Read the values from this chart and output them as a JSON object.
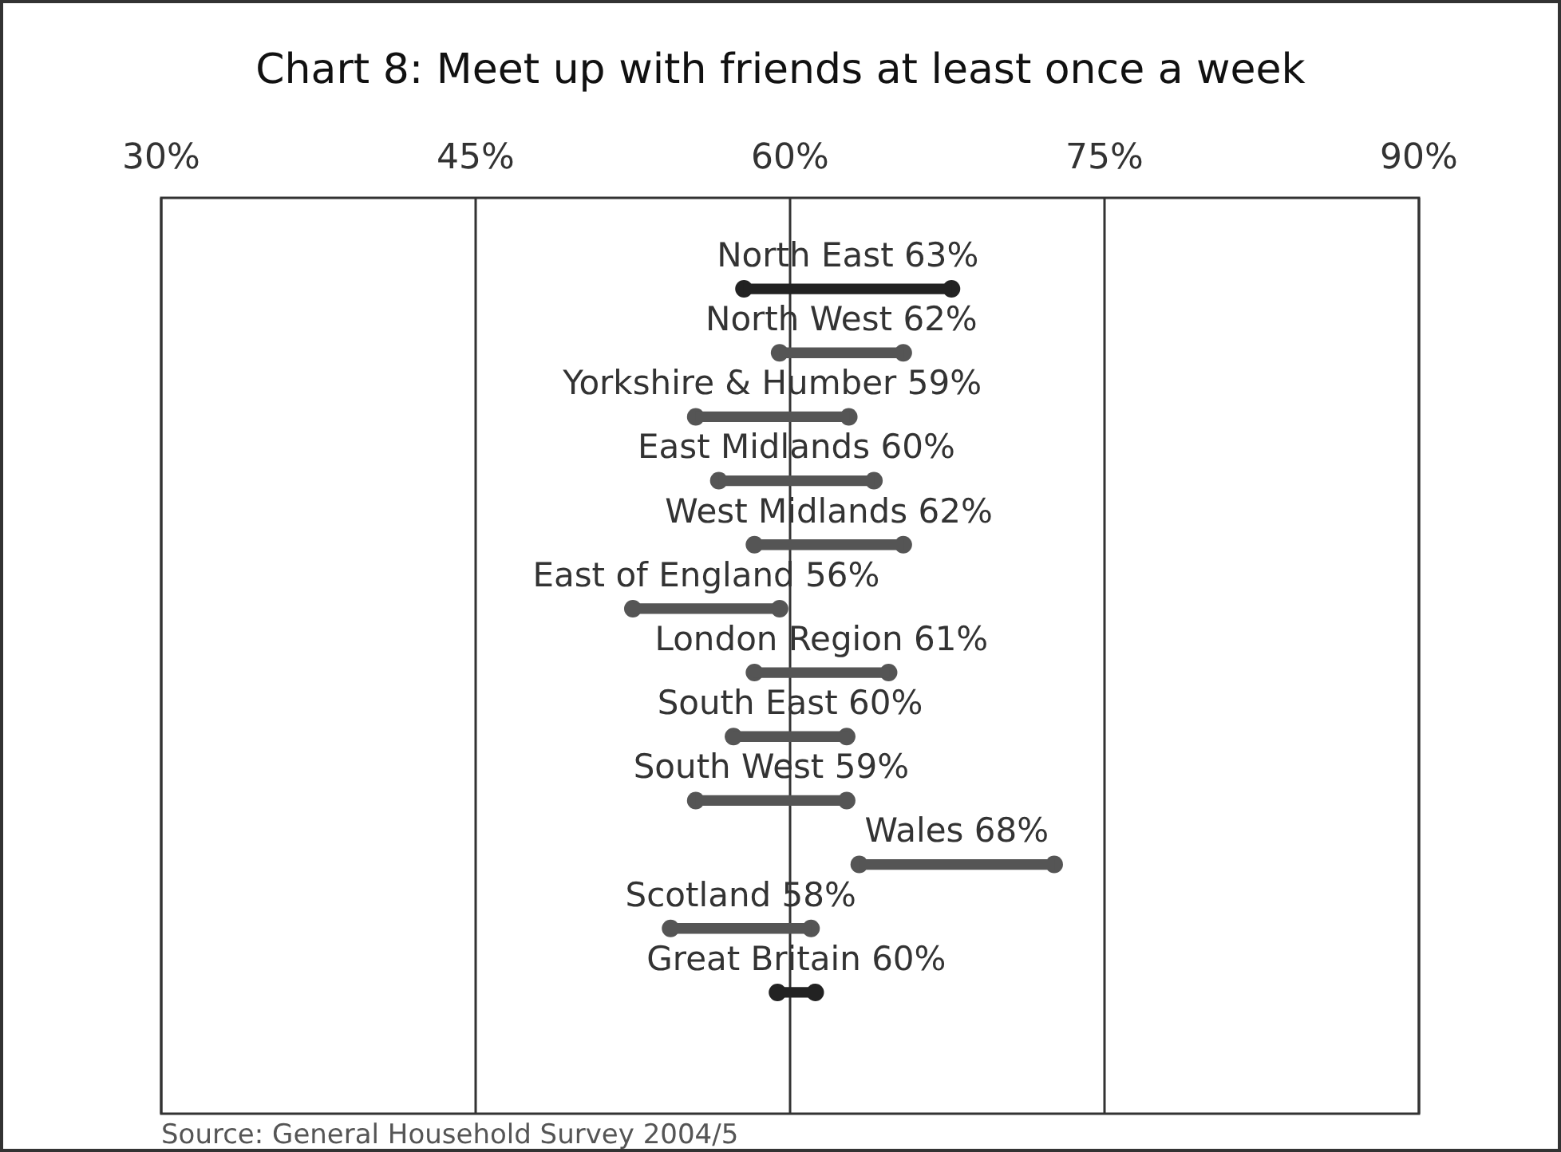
{
  "chart_data": {
    "type": "bar",
    "orientation": "horizontal",
    "title": "Chart 8: Meet up with friends at least once a week",
    "categories": [
      "North East 63%",
      "North West 62%",
      "Yorkshire & Humber 59%",
      "East Midlands 60%",
      "West Midlands 62%",
      "East of England 56%",
      "London Region 61%",
      "South East 60%",
      "South West 59%",
      "Wales 68%",
      "Scotland 58%",
      "Great Britain 60%"
    ],
    "series": [
      {
        "base": [
          57.8,
          59.5,
          55.5,
          56.6,
          58.3,
          52.5,
          58.3,
          57.3,
          55.5,
          63.3,
          54.3,
          59.4
        ],
        "values": [
          9.9,
          5.9,
          7.3,
          7.4,
          7.1,
          7.0,
          6.4,
          5.4,
          7.2,
          9.3,
          6.7,
          1.8
        ],
        "colors": [
          "#222222",
          "#555555",
          "#555555",
          "#555555",
          "#555555",
          "#555555",
          "#555555",
          "#555555",
          "#555555",
          "#555555",
          "#555555",
          "#222222"
        ]
      },
      {
        "type": "scatter",
        "marker": "circle",
        "values": [
          57.8,
          59.5,
          55.5,
          56.6,
          58.3,
          52.5,
          58.3,
          57.3,
          55.5,
          63.3,
          54.3,
          59.4
        ],
        "colors": [
          "#222222",
          "#555555",
          "#555555",
          "#555555",
          "#555555",
          "#555555",
          "#555555",
          "#555555",
          "#555555",
          "#555555",
          "#555555",
          "#222222"
        ]
      },
      {
        "type": "scatter",
        "marker": "circle",
        "values": [
          67.7,
          65.4,
          62.8,
          64.0,
          65.4,
          59.5,
          64.7,
          62.7,
          62.7,
          72.6,
          61.0,
          61.2
        ],
        "colors": [
          "#222222",
          "#555555",
          "#555555",
          "#555555",
          "#555555",
          "#555555",
          "#555555",
          "#555555",
          "#555555",
          "#555555",
          "#555555",
          "#222222"
        ]
      }
    ],
    "xlim": [
      30,
      90
    ],
    "xticks": [
      {
        "value": 30,
        "label": "30%"
      },
      {
        "value": 45,
        "label": "45%"
      },
      {
        "value": 60,
        "label": "60%"
      },
      {
        "value": 75,
        "label": "75%"
      },
      {
        "value": 90,
        "label": "90%"
      }
    ],
    "grid": "x",
    "legend": false,
    "annotations": [
      "Source: General Household Survey 2004/5"
    ]
  }
}
